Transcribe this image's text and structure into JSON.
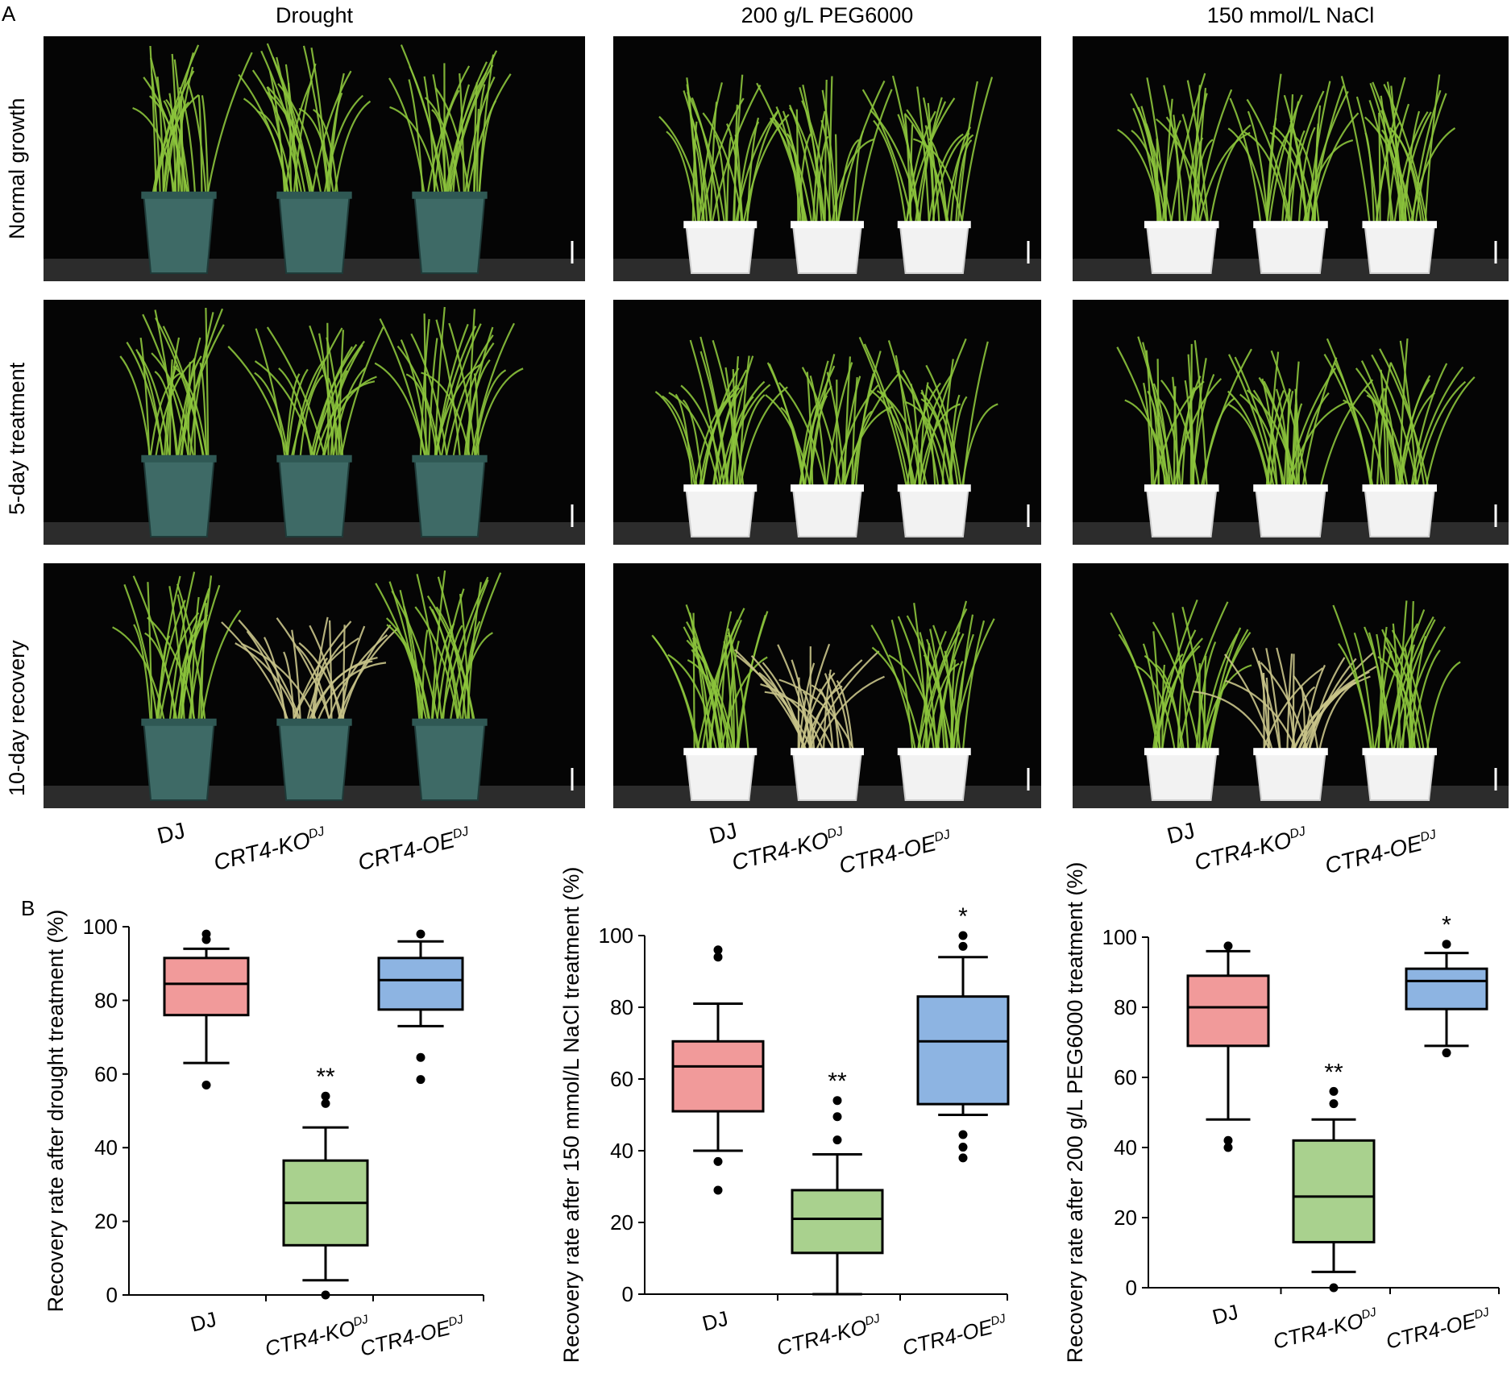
{
  "panel_a": {
    "letter": "A",
    "columns": [
      "Drought",
      "200 g/L PEG6000",
      "150 mmol/L NaCl"
    ],
    "rows": [
      "Normal growth",
      "5-day treatment",
      "10-day recovery"
    ],
    "genotype_labels": [
      [
        {
          "main": "DJ",
          "sup": ""
        },
        {
          "main": "CRT4-KO",
          "sup": "DJ"
        },
        {
          "main": "CRT4-OE",
          "sup": "DJ"
        }
      ],
      [
        {
          "main": "DJ",
          "sup": ""
        },
        {
          "main": "CTR4-KO",
          "sup": "DJ"
        },
        {
          "main": "CTR4-OE",
          "sup": "DJ"
        }
      ],
      [
        {
          "main": "DJ",
          "sup": ""
        },
        {
          "main": "CTR4-KO",
          "sup": "DJ"
        },
        {
          "main": "CTR4-OE",
          "sup": "DJ"
        }
      ]
    ],
    "plant_health": [
      [
        [
          1,
          1,
          1
        ],
        [
          1,
          1,
          1
        ],
        [
          1,
          1,
          1
        ]
      ],
      [
        [
          1,
          0.8,
          1
        ],
        [
          1,
          0.8,
          1
        ],
        [
          1,
          0.8,
          1
        ]
      ],
      [
        [
          1,
          0.35,
          1
        ],
        [
          1,
          0.35,
          1
        ],
        [
          1,
          0.35,
          1
        ]
      ]
    ],
    "container_types": [
      "pot",
      "tray",
      "tray"
    ],
    "colors": {
      "healthy_leaf": "#8cc43c",
      "wilted_leaf": "#c9c48a",
      "pot": "#3e6a66",
      "tray": "#f2f2f2",
      "background": "#050505"
    }
  },
  "panel_b": {
    "letter": "B"
  },
  "chart_data": [
    {
      "type": "box",
      "ylabel": "Recovery rate after drought treatment (%)",
      "ylim": [
        0,
        100
      ],
      "yticks": [
        0,
        20,
        40,
        60,
        80,
        100
      ],
      "categories": [
        {
          "main": "DJ",
          "sup": ""
        },
        {
          "main": "CTR4-KO",
          "sup": "DJ"
        },
        {
          "main": "CTR4-OE",
          "sup": "DJ"
        }
      ],
      "series": [
        {
          "whisker_low": 63,
          "q1": 76,
          "median": 84.5,
          "q3": 91.5,
          "whisker_high": 94,
          "outliers": [
            57,
            98,
            96.5
          ],
          "color": "#f19a9a",
          "sig": ""
        },
        {
          "whisker_low": 4,
          "q1": 13.5,
          "median": 25,
          "q3": 36.5,
          "whisker_high": 45.5,
          "outliers": [
            0,
            52,
            54
          ],
          "color": "#a9d18e",
          "sig": "**"
        },
        {
          "whisker_low": 73,
          "q1": 77.5,
          "median": 85.5,
          "q3": 91.5,
          "whisker_high": 96,
          "outliers": [
            58.5,
            64.5,
            98
          ],
          "color": "#8db4e2",
          "sig": ""
        }
      ]
    },
    {
      "type": "box",
      "ylabel": "Recovery rate after 150 mmol/L NaCl treatment (%)",
      "ylim": [
        0,
        100
      ],
      "yticks": [
        0,
        20,
        40,
        60,
        80,
        100
      ],
      "categories": [
        {
          "main": "DJ",
          "sup": ""
        },
        {
          "main": "CTR4-KO",
          "sup": "DJ"
        },
        {
          "main": "CTR4-OE",
          "sup": "DJ"
        }
      ],
      "series": [
        {
          "whisker_low": 40,
          "q1": 51,
          "median": 63.5,
          "q3": 70.5,
          "whisker_high": 81,
          "outliers": [
            29,
            37,
            94,
            96
          ],
          "color": "#f19a9a",
          "sig": ""
        },
        {
          "whisker_low": 0,
          "q1": 11.5,
          "median": 21,
          "q3": 29,
          "whisker_high": 39,
          "outliers": [
            43,
            49.5,
            54
          ],
          "color": "#a9d18e",
          "sig": "**"
        },
        {
          "whisker_low": 50,
          "q1": 53,
          "median": 70.5,
          "q3": 83,
          "whisker_high": 94,
          "outliers": [
            38,
            41,
            44.5,
            97,
            100
          ],
          "color": "#8db4e2",
          "sig": "*"
        }
      ]
    },
    {
      "type": "box",
      "ylabel": "Recovery rate after 200 g/L PEG6000 treatment (%)",
      "ylim": [
        0,
        100
      ],
      "yticks": [
        0,
        20,
        40,
        60,
        80,
        100
      ],
      "categories": [
        {
          "main": "DJ",
          "sup": ""
        },
        {
          "main": "CTR4-KO",
          "sup": "DJ"
        },
        {
          "main": "CTR4-OE",
          "sup": "DJ"
        }
      ],
      "series": [
        {
          "whisker_low": 48,
          "q1": 69,
          "median": 80,
          "q3": 89,
          "whisker_high": 96,
          "outliers": [
            40,
            42,
            97.5
          ],
          "color": "#f19a9a",
          "sig": ""
        },
        {
          "whisker_low": 4.5,
          "q1": 13,
          "median": 26,
          "q3": 42,
          "whisker_high": 48,
          "outliers": [
            0,
            52.5,
            56
          ],
          "color": "#a9d18e",
          "sig": "**"
        },
        {
          "whisker_low": 69,
          "q1": 79.5,
          "median": 87.5,
          "q3": 91,
          "whisker_high": 95.5,
          "outliers": [
            67,
            98
          ],
          "color": "#8db4e2",
          "sig": "*"
        }
      ]
    }
  ]
}
